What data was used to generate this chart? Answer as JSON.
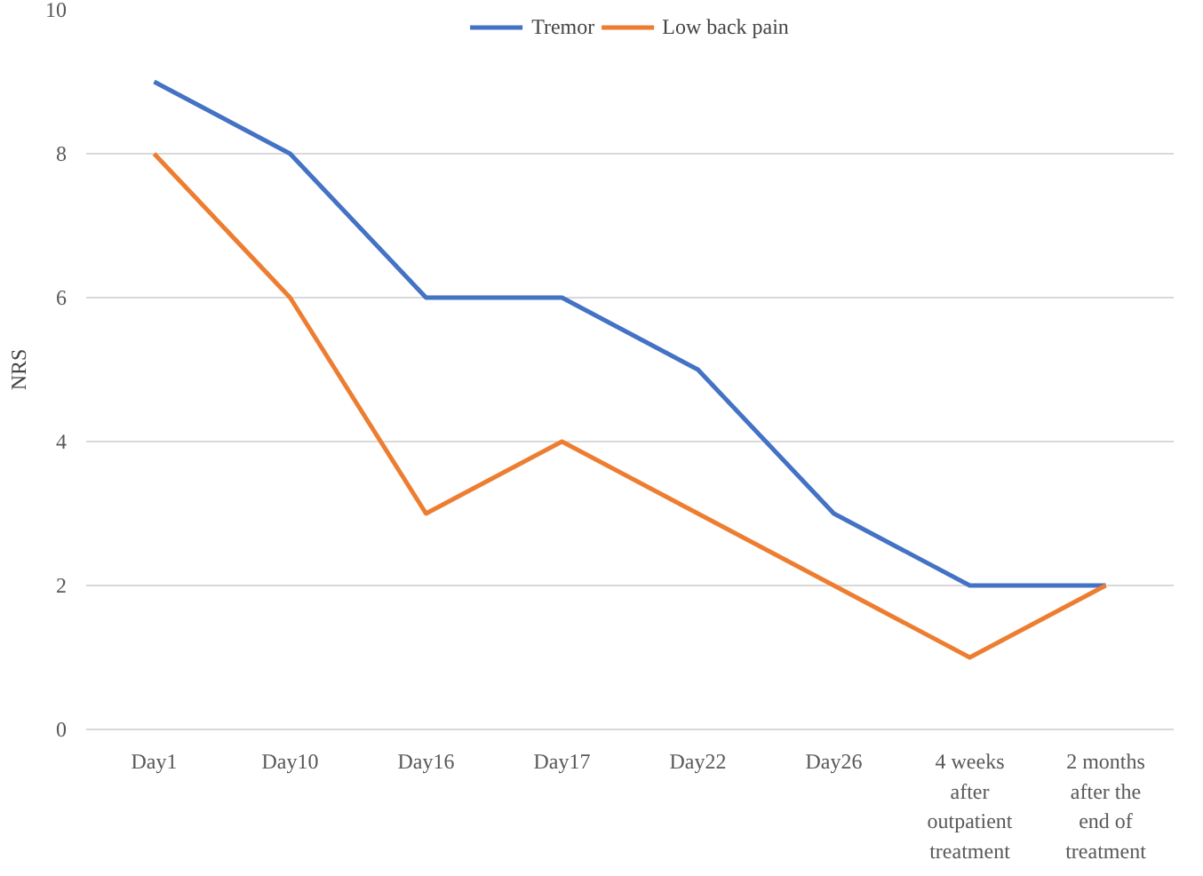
{
  "chart_data": {
    "type": "line",
    "ylabel": "NRS",
    "categories": [
      "Day1",
      "Day10",
      "Day16",
      "Day17",
      "Day22",
      "Day26",
      "4 weeks after outpatient treatment",
      "2 months after the end of treatment"
    ],
    "series": [
      {
        "name": "Tremor",
        "color": "#4472c4",
        "values": [
          9,
          8,
          6,
          6,
          5,
          3,
          2,
          2
        ]
      },
      {
        "name": "Low back pain",
        "color": "#ed7d31",
        "values": [
          8,
          6,
          3,
          4,
          3,
          2,
          1,
          2
        ]
      }
    ],
    "ylim": [
      0,
      10
    ],
    "yticks": [
      0,
      2,
      4,
      6,
      8,
      10
    ],
    "grid": "y",
    "legend": "top",
    "marker": "none",
    "line_style": "solid"
  }
}
